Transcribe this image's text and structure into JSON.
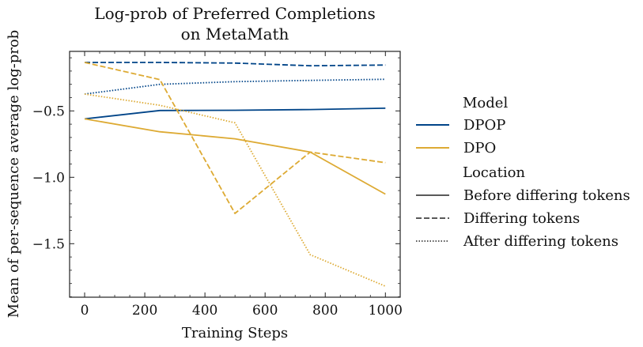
{
  "chart_data": {
    "type": "line",
    "title": "Log-prob of Preferred Completions",
    "subtitle": "on MetaMath",
    "xlabel": "Training Steps",
    "ylabel": "Mean of per-sequence average log-prob",
    "xlim": [
      -50,
      1050
    ],
    "ylim": [
      -1.91,
      -0.0
    ],
    "x_ticks": [
      0,
      200,
      400,
      600,
      800,
      1000
    ],
    "y_ticks": [
      -0.5,
      -1.0,
      -1.5
    ],
    "x_tick_labels": [
      "0",
      "200",
      "400",
      "600",
      "800",
      "1000"
    ],
    "y_tick_labels": [
      "−0.5",
      "−1.0",
      "−1.5"
    ],
    "grid": false,
    "legend_position": "right-outside",
    "legend": {
      "model_title": "Model",
      "location_title": "Location",
      "models": [
        {
          "name": "DPOP",
          "color": "#004488"
        },
        {
          "name": "DPO",
          "color": "#DDAA33"
        }
      ],
      "locations": [
        {
          "name": "Before differing tokens",
          "style": "solid"
        },
        {
          "name": "Differing tokens",
          "style": "dashed"
        },
        {
          "name": "After differing tokens",
          "style": "dotted"
        }
      ]
    },
    "x": [
      0,
      250,
      500,
      750,
      1000
    ],
    "series": [
      {
        "model": "DPOP",
        "location": "Before differing tokens",
        "values": [
          -0.56,
          -0.497,
          -0.495,
          -0.49,
          -0.48
        ]
      },
      {
        "model": "DPOP",
        "location": "Differing tokens",
        "values": [
          -0.135,
          -0.135,
          -0.14,
          -0.16,
          -0.155
        ]
      },
      {
        "model": "DPOP",
        "location": "After differing tokens",
        "values": [
          -0.373,
          -0.3,
          -0.28,
          -0.27,
          -0.262
        ]
      },
      {
        "model": "DPO",
        "location": "Before differing tokens",
        "values": [
          -0.56,
          -0.657,
          -0.71,
          -0.81,
          -1.127
        ]
      },
      {
        "model": "DPO",
        "location": "Differing tokens",
        "values": [
          -0.135,
          -0.264,
          -1.272,
          -0.81,
          -0.89
        ]
      },
      {
        "model": "DPO",
        "location": "After differing tokens",
        "values": [
          -0.373,
          -0.458,
          -0.59,
          -1.583,
          -1.82
        ]
      }
    ]
  }
}
